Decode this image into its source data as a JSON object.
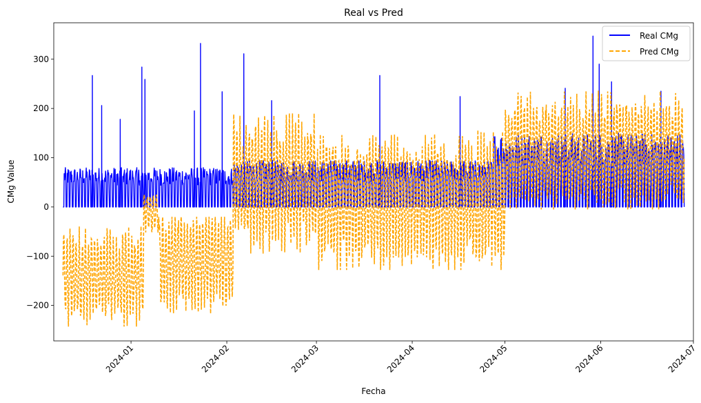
{
  "chart_data": {
    "type": "line",
    "title": "Real vs Pred",
    "xlabel": "Fecha",
    "ylabel": "CMg Value",
    "x_range": [
      "2023-12-10",
      "2024-06-28"
    ],
    "xlim": [
      "2023-12-07",
      "2024-07-01"
    ],
    "ylim": [
      -272,
      374
    ],
    "grid": false,
    "legend": "top-right",
    "x_ticks": [
      "2024-01",
      "2024-02",
      "2024-03",
      "2024-04",
      "2024-05",
      "2024-06",
      "2024-07"
    ],
    "x_tick_dates": [
      "2024-01-01",
      "2024-02-01",
      "2024-03-01",
      "2024-04-01",
      "2024-05-01",
      "2024-06-01",
      "2024-07-01"
    ],
    "y_ticks": [
      "−200",
      "−100",
      "0",
      "100",
      "200",
      "300"
    ],
    "y_tick_values": [
      -200,
      -100,
      0,
      100,
      200,
      300
    ],
    "series": [
      {
        "name": "Real CMg",
        "color": "#0000ff",
        "style": "solid",
        "values_by_period": [
          {
            "period": "2023-12-10 to 2024-02-03",
            "min": 0,
            "typical_peak": 80,
            "max": 332
          },
          {
            "period": "2024-02-03 to 2024-04-27",
            "min": 0,
            "typical_peak": 95,
            "max": 311
          },
          {
            "period": "2024-04-27 to 2024-06-28",
            "min": 0,
            "typical_peak": 150,
            "max": 347
          }
        ],
        "notable_peaks": [
          {
            "x": "2023-12-19",
            "y": 267
          },
          {
            "x": "2023-12-22",
            "y": 206
          },
          {
            "x": "2023-12-28",
            "y": 178
          },
          {
            "x": "2024-01-04",
            "y": 284
          },
          {
            "x": "2024-01-05",
            "y": 259
          },
          {
            "x": "2024-01-21",
            "y": 195
          },
          {
            "x": "2024-01-23",
            "y": 332
          },
          {
            "x": "2024-01-30",
            "y": 234
          },
          {
            "x": "2024-02-06",
            "y": 311
          },
          {
            "x": "2024-02-15",
            "y": 216
          },
          {
            "x": "2024-03-21",
            "y": 267
          },
          {
            "x": "2024-04-16",
            "y": 224
          },
          {
            "x": "2024-05-20",
            "y": 241
          },
          {
            "x": "2024-05-29",
            "y": 347
          },
          {
            "x": "2024-05-31",
            "y": 290
          },
          {
            "x": "2024-06-04",
            "y": 254
          },
          {
            "x": "2024-06-20",
            "y": 235
          }
        ]
      },
      {
        "name": "Pred CMg",
        "color": "#ffa500",
        "style": "dashed",
        "values_by_period": [
          {
            "period": "2023-12-10 to 2024-01-05",
            "min": -243,
            "mean": -140,
            "max": -35
          },
          {
            "period": "2024-01-05 to 2024-01-10",
            "min": -60,
            "mean": -10,
            "max": 25
          },
          {
            "period": "2024-01-10 to 2024-02-03",
            "min": -235,
            "mean": -110,
            "max": -20
          },
          {
            "period": "2024-02-03 to 2024-03-01",
            "min": -100,
            "mean": 50,
            "max": 190
          },
          {
            "period": "2024-03-01 to 2024-05-01",
            "min": -128,
            "mean": 10,
            "max": 165
          },
          {
            "period": "2024-05-01 to 2024-06-28",
            "min": -5,
            "mean": 110,
            "max": 248
          }
        ]
      }
    ]
  }
}
